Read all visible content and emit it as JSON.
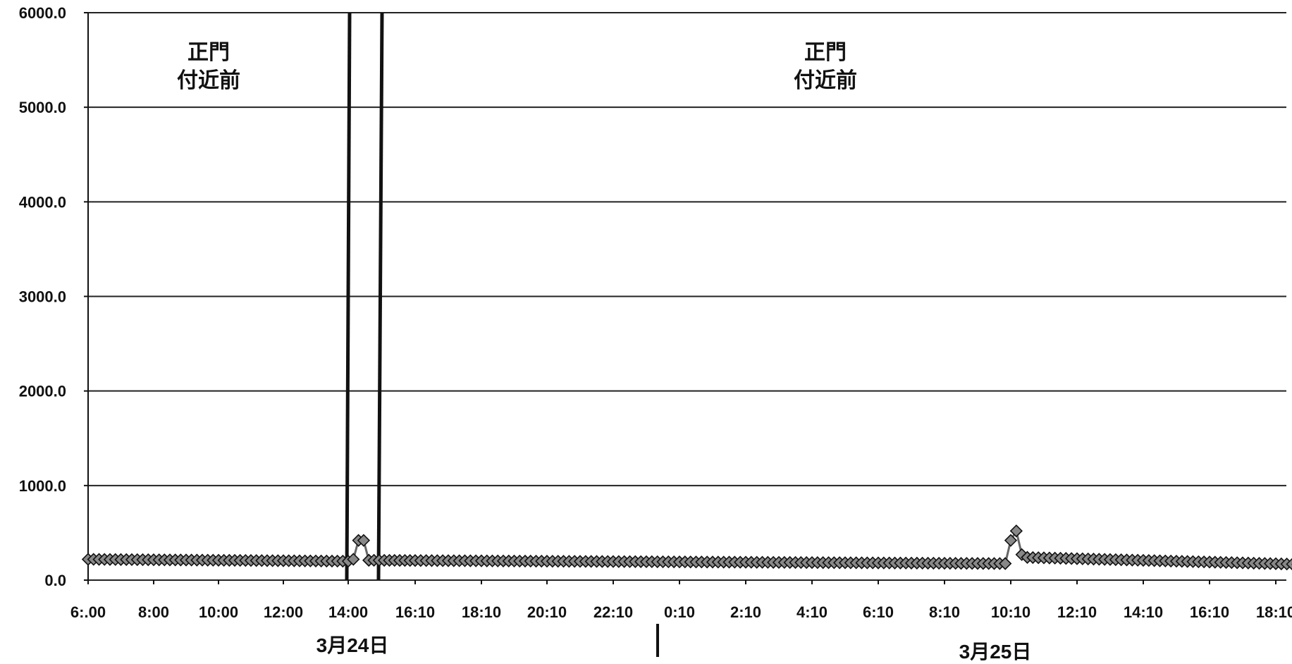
{
  "chart_data": {
    "type": "line",
    "title": "",
    "xlabel": "",
    "ylabel": "",
    "ylim": [
      0,
      6000
    ],
    "yticks": [
      "6000.0",
      "5000.0",
      "4000.0",
      "3000.0",
      "2000.0",
      "1000.0",
      "0.0"
    ],
    "xticks": [
      "6:.00",
      "8:00",
      "10:00",
      "12:00",
      "14:00",
      "16:10",
      "18:10",
      "20:10",
      "22:10",
      "0:10",
      "2:10",
      "4:10",
      "6:10",
      "8:10",
      "10:10",
      "12:10",
      "14:10",
      "16:10",
      "18:10"
    ],
    "date_labels": [
      "3月24日",
      "3月25日"
    ],
    "annotations": [
      {
        "line1": "正門",
        "line2": "付近前"
      },
      {
        "line1": "正門",
        "line2": "付近前"
      }
    ],
    "grid": true,
    "legend": "none",
    "marker": "diamond",
    "colors": {
      "line": "#666666",
      "marker_fill": "#888888",
      "marker_stroke": "#111111",
      "grid": "#222222"
    },
    "series": [
      {
        "segments": [
          {
            "x": [
              "3/24 06:00",
              "14:00"
            ],
            "y": [
              220,
              200
            ]
          },
          {
            "x": [
              "14:10",
              "14:20",
              "14:30",
              "14:40"
            ],
            "y": [
              220,
              420,
              420,
              210
            ]
          },
          {
            "x": [
              "14:40",
              "3/25 10:00"
            ],
            "y": [
              210,
              175
            ]
          },
          {
            "x": [
              "10:00",
              "10:10",
              "10:20",
              "10:30",
              "10:40"
            ],
            "y": [
              175,
              420,
              520,
              270,
              240
            ]
          },
          {
            "x": [
              "10:40",
              "3/25 19:40"
            ],
            "y": [
              240,
              160
            ]
          }
        ]
      }
    ]
  }
}
